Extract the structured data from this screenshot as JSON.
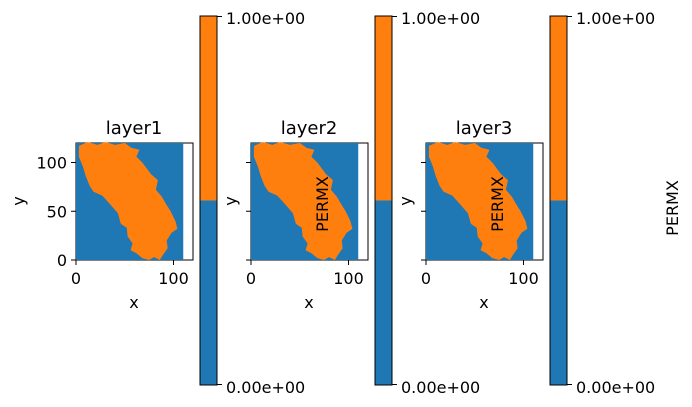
{
  "colors": {
    "background": "#1f77b4",
    "region": "#ff7f0e",
    "axis": "#000000"
  },
  "chart_data": [
    {
      "type": "heatmap",
      "title": "layer1",
      "xlabel": "x",
      "ylabel": "y",
      "xlim": [
        0,
        120
      ],
      "ylim": [
        0,
        120
      ],
      "data_extent": {
        "x": [
          0,
          110
        ],
        "y": [
          0,
          120
        ]
      },
      "xticks": [
        0,
        100
      ],
      "yticks": [
        0,
        50,
        100
      ],
      "xtick_labels": [
        "0",
        "100"
      ],
      "ytick_labels": [
        "0",
        "50",
        "100"
      ],
      "show_ytick_labels": true,
      "show_ylabel": true,
      "region_outline": [
        [
          3,
          117
        ],
        [
          12,
          121
        ],
        [
          22,
          118
        ],
        [
          30,
          121
        ],
        [
          40,
          118
        ],
        [
          50,
          120
        ],
        [
          57,
          115
        ],
        [
          65,
          113
        ],
        [
          62,
          106
        ],
        [
          68,
          100
        ],
        [
          77,
          88
        ],
        [
          84,
          82
        ],
        [
          82,
          72
        ],
        [
          88,
          65
        ],
        [
          92,
          58
        ],
        [
          97,
          50
        ],
        [
          102,
          40
        ],
        [
          104,
          32
        ],
        [
          98,
          28
        ],
        [
          93,
          20
        ],
        [
          94,
          12
        ],
        [
          89,
          5
        ],
        [
          86,
          0
        ],
        [
          80,
          3
        ],
        [
          75,
          0
        ],
        [
          68,
          2
        ],
        [
          62,
          7
        ],
        [
          56,
          10
        ],
        [
          58,
          17
        ],
        [
          53,
          24
        ],
        [
          52,
          33
        ],
        [
          46,
          37
        ],
        [
          43,
          48
        ],
        [
          36,
          56
        ],
        [
          27,
          66
        ],
        [
          18,
          70
        ],
        [
          14,
          76
        ],
        [
          10,
          86
        ],
        [
          7,
          96
        ],
        [
          3,
          106
        ]
      ],
      "colorbar": {
        "min": 0,
        "max": 1,
        "min_label": "0.00e+00",
        "max_label": "1.00e+00",
        "label": "",
        "split_fraction": 0.5
      }
    },
    {
      "type": "heatmap",
      "title": "layer2",
      "xlabel": "x",
      "ylabel": "y",
      "xlim": [
        0,
        120
      ],
      "ylim": [
        0,
        120
      ],
      "data_extent": {
        "x": [
          0,
          110
        ],
        "y": [
          0,
          120
        ]
      },
      "xticks": [
        0,
        100
      ],
      "yticks": [
        0,
        50,
        100
      ],
      "xtick_labels": [
        "0",
        "100"
      ],
      "ytick_labels": [
        "",
        "",
        ""
      ],
      "show_ytick_labels": false,
      "show_ylabel": true,
      "region_outline": [
        [
          3,
          117
        ],
        [
          12,
          121
        ],
        [
          22,
          118
        ],
        [
          30,
          121
        ],
        [
          40,
          118
        ],
        [
          50,
          120
        ],
        [
          57,
          115
        ],
        [
          65,
          113
        ],
        [
          62,
          106
        ],
        [
          68,
          100
        ],
        [
          77,
          88
        ],
        [
          84,
          82
        ],
        [
          82,
          72
        ],
        [
          88,
          65
        ],
        [
          92,
          58
        ],
        [
          97,
          50
        ],
        [
          102,
          40
        ],
        [
          104,
          32
        ],
        [
          98,
          28
        ],
        [
          93,
          20
        ],
        [
          94,
          12
        ],
        [
          89,
          5
        ],
        [
          86,
          0
        ],
        [
          80,
          3
        ],
        [
          75,
          0
        ],
        [
          68,
          2
        ],
        [
          62,
          7
        ],
        [
          56,
          10
        ],
        [
          58,
          17
        ],
        [
          53,
          24
        ],
        [
          52,
          33
        ],
        [
          46,
          37
        ],
        [
          43,
          48
        ],
        [
          36,
          56
        ],
        [
          27,
          66
        ],
        [
          18,
          70
        ],
        [
          14,
          76
        ],
        [
          10,
          86
        ],
        [
          7,
          96
        ],
        [
          3,
          106
        ]
      ],
      "colorbar": {
        "min": 0,
        "max": 1,
        "min_label": "0.00e+00",
        "max_label": "1.00e+00",
        "label": "PERMX",
        "split_fraction": 0.5
      }
    },
    {
      "type": "heatmap",
      "title": "layer3",
      "xlabel": "x",
      "ylabel": "y",
      "xlim": [
        0,
        120
      ],
      "ylim": [
        0,
        120
      ],
      "data_extent": {
        "x": [
          0,
          110
        ],
        "y": [
          0,
          120
        ]
      },
      "xticks": [
        0,
        100
      ],
      "yticks": [
        0,
        50,
        100
      ],
      "xtick_labels": [
        "0",
        "100"
      ],
      "ytick_labels": [
        "",
        "",
        ""
      ],
      "show_ytick_labels": false,
      "show_ylabel": true,
      "region_outline": [
        [
          3,
          117
        ],
        [
          12,
          121
        ],
        [
          22,
          118
        ],
        [
          30,
          121
        ],
        [
          40,
          118
        ],
        [
          50,
          120
        ],
        [
          57,
          115
        ],
        [
          65,
          113
        ],
        [
          62,
          106
        ],
        [
          68,
          100
        ],
        [
          77,
          88
        ],
        [
          84,
          82
        ],
        [
          82,
          72
        ],
        [
          88,
          65
        ],
        [
          92,
          58
        ],
        [
          97,
          50
        ],
        [
          102,
          40
        ],
        [
          104,
          32
        ],
        [
          98,
          28
        ],
        [
          93,
          20
        ],
        [
          94,
          12
        ],
        [
          89,
          5
        ],
        [
          86,
          0
        ],
        [
          80,
          3
        ],
        [
          75,
          0
        ],
        [
          68,
          2
        ],
        [
          62,
          7
        ],
        [
          56,
          10
        ],
        [
          58,
          17
        ],
        [
          53,
          24
        ],
        [
          52,
          33
        ],
        [
          46,
          37
        ],
        [
          43,
          48
        ],
        [
          36,
          56
        ],
        [
          27,
          66
        ],
        [
          18,
          70
        ],
        [
          14,
          76
        ],
        [
          10,
          86
        ],
        [
          7,
          96
        ],
        [
          3,
          106
        ]
      ],
      "colorbar": {
        "min": 0,
        "max": 1,
        "min_label": "0.00e+00",
        "max_label": "1.00e+00",
        "label": "PERMX",
        "split_fraction": 0.5
      }
    }
  ]
}
